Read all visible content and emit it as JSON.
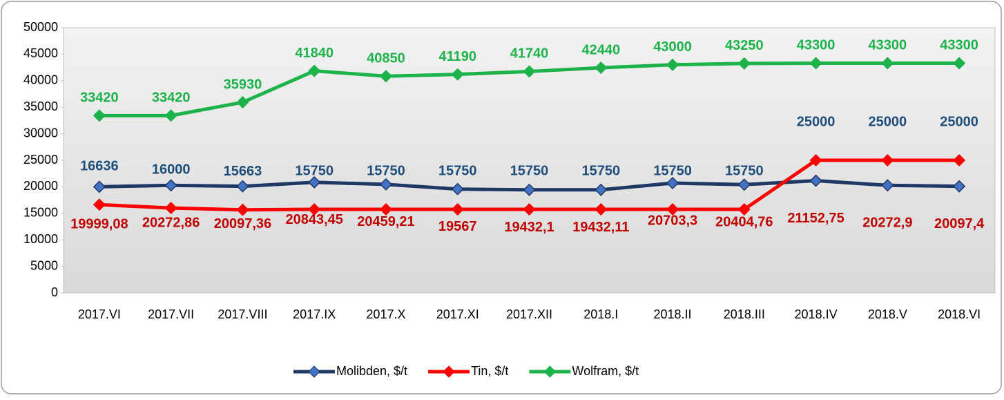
{
  "chart_data": {
    "type": "line",
    "categories": [
      "2017.VI",
      "2017.VII",
      "2017.VIII",
      "2017.IX",
      "2017.X",
      "2017.XI",
      "2017.XII",
      "2018.I",
      "2018.II",
      "2018.III",
      "2018.IV",
      "2018.V",
      "2018.VI"
    ],
    "series": [
      {
        "name": "Molibden, $/t",
        "color": "#1f3864",
        "label_color": "#c00000",
        "values": [
          19999.08,
          20272.86,
          20097.36,
          20843.45,
          20459.21,
          19567,
          19432.1,
          19432.11,
          20703.3,
          20404.76,
          21152.75,
          20272.9,
          20097.4
        ],
        "value_labels": [
          "19999,08",
          "20272,86",
          "20097,36",
          "20843,45",
          "20459,21",
          "19567",
          "19432,1",
          "19432,11",
          "20703,3",
          "20404,76",
          "21152,75",
          "20272,9",
          "20097,4"
        ]
      },
      {
        "name": "Tin, $/t",
        "color": "#ff0000",
        "label_color": "#1f4e79",
        "values": [
          16636,
          16000,
          15663,
          15750,
          15750,
          15750,
          15750,
          15750,
          15750,
          15750,
          25000,
          25000,
          25000
        ]
      },
      {
        "name": "Wolfram, $/t",
        "color": "#1db34a",
        "label_color": "#1db34a",
        "values": [
          33420,
          33420,
          35930,
          41840,
          40850,
          41190,
          41740,
          42440,
          43000,
          43250,
          43300,
          43300,
          43300
        ]
      }
    ],
    "ylim": [
      0,
      50000
    ],
    "yticks": [
      0,
      5000,
      10000,
      15000,
      20000,
      25000,
      30000,
      35000,
      40000,
      45000,
      50000
    ],
    "legend": "bottom"
  }
}
